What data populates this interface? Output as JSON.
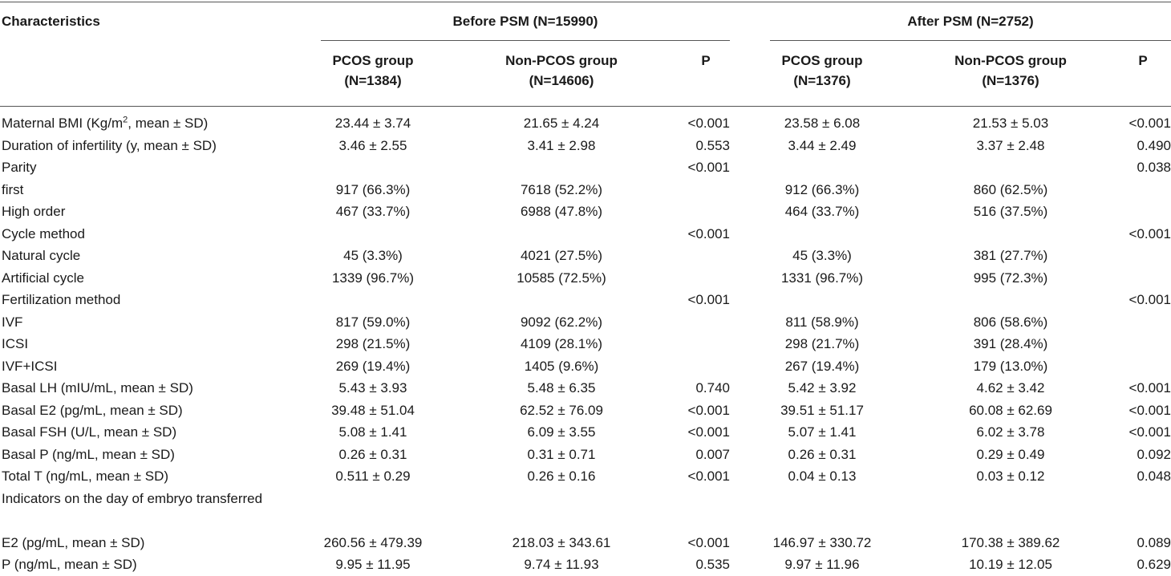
{
  "header": {
    "characteristics": "Characteristics",
    "before_group": "Before PSM (N=15990)",
    "after_group": "After PSM (N=2752)",
    "before_pcos_line1": "PCOS group",
    "before_pcos_line2": "(N=1384)",
    "before_non_line1": "Non-PCOS group",
    "before_non_line2": "(N=14606)",
    "before_p": "P",
    "after_pcos_line1": "PCOS group",
    "after_pcos_line2": "(N=1376)",
    "after_non_line1": "Non-PCOS group",
    "after_non_line2": "(N=1376)",
    "after_p": "P"
  },
  "bmi_label": {
    "before_sup": "Maternal BMI (Kg/m",
    "sup": "2",
    "after_sup": ", mean ± SD)"
  },
  "rows": [
    {
      "label": "",
      "b_pcos": "23.44 ± 3.74",
      "b_non": "21.65 ± 4.24",
      "b_p": "<0.001",
      "a_pcos": "23.58 ± 6.08",
      "a_non": "21.53 ± 5.03",
      "a_p": "<0.001"
    },
    {
      "label": "Duration of infertility (y, mean ± SD)",
      "b_pcos": "3.46 ± 2.55",
      "b_non": "3.41 ± 2.98",
      "b_p": "0.553",
      "a_pcos": "3.44 ± 2.49",
      "a_non": "3.37 ± 2.48",
      "a_p": "0.490"
    },
    {
      "label": "Parity",
      "b_pcos": "",
      "b_non": "",
      "b_p": "<0.001",
      "a_pcos": "",
      "a_non": "",
      "a_p": "0.038"
    },
    {
      "label": "first",
      "b_pcos": "917 (66.3%)",
      "b_non": "7618 (52.2%)",
      "b_p": "",
      "a_pcos": "912 (66.3%)",
      "a_non": "860 (62.5%)",
      "a_p": ""
    },
    {
      "label": "High order",
      "b_pcos": "467 (33.7%)",
      "b_non": "6988 (47.8%)",
      "b_p": "",
      "a_pcos": "464 (33.7%)",
      "a_non": "516 (37.5%)",
      "a_p": ""
    },
    {
      "label": "Cycle method",
      "b_pcos": "",
      "b_non": "",
      "b_p": "<0.001",
      "a_pcos": "",
      "a_non": "",
      "a_p": "<0.001"
    },
    {
      "label": "Natural cycle",
      "b_pcos": "45 (3.3%)",
      "b_non": "4021 (27.5%)",
      "b_p": "",
      "a_pcos": "45 (3.3%)",
      "a_non": "381 (27.7%)",
      "a_p": ""
    },
    {
      "label": "Artificial cycle",
      "b_pcos": "1339 (96.7%)",
      "b_non": "10585 (72.5%)",
      "b_p": "",
      "a_pcos": "1331 (96.7%)",
      "a_non": "995 (72.3%)",
      "a_p": ""
    },
    {
      "label": "Fertilization method",
      "b_pcos": "",
      "b_non": "",
      "b_p": "<0.001",
      "a_pcos": "",
      "a_non": "",
      "a_p": "<0.001"
    },
    {
      "label": "IVF",
      "b_pcos": "817 (59.0%)",
      "b_non": "9092 (62.2%)",
      "b_p": "",
      "a_pcos": "811 (58.9%)",
      "a_non": "806 (58.6%)",
      "a_p": ""
    },
    {
      "label": "ICSI",
      "b_pcos": "298 (21.5%)",
      "b_non": "4109 (28.1%)",
      "b_p": "",
      "a_pcos": "298 (21.7%)",
      "a_non": "391 (28.4%)",
      "a_p": ""
    },
    {
      "label": "IVF+ICSI",
      "b_pcos": "269 (19.4%)",
      "b_non": "1405 (9.6%)",
      "b_p": "",
      "a_pcos": "267 (19.4%)",
      "a_non": "179 (13.0%)",
      "a_p": ""
    },
    {
      "label": "Basal LH (mIU/mL, mean ± SD)",
      "b_pcos": "5.43 ± 3.93",
      "b_non": "5.48 ± 6.35",
      "b_p": "0.740",
      "a_pcos": "5.42 ± 3.92",
      "a_non": "4.62 ± 3.42",
      "a_p": "<0.001"
    },
    {
      "label": "Basal E2 (pg/mL, mean ± SD)",
      "b_pcos": "39.48 ± 51.04",
      "b_non": "62.52 ± 76.09",
      "b_p": "<0.001",
      "a_pcos": "39.51 ± 51.17",
      "a_non": "60.08 ± 62.69",
      "a_p": "<0.001"
    },
    {
      "label": "Basal FSH (U/L, mean ± SD)",
      "b_pcos": "5.08 ± 1.41",
      "b_non": "6.09 ± 3.55",
      "b_p": "<0.001",
      "a_pcos": "5.07 ± 1.41",
      "a_non": "6.02 ± 3.78",
      "a_p": "<0.001"
    },
    {
      "label": "Basal P (ng/mL, mean ± SD)",
      "b_pcos": "0.26 ± 0.31",
      "b_non": "0.31 ± 0.71",
      "b_p": "0.007",
      "a_pcos": "0.26 ± 0.31",
      "a_non": "0.29 ± 0.49",
      "a_p": "0.092"
    },
    {
      "label": "Total T (ng/mL, mean ± SD)",
      "b_pcos": "0.511 ± 0.29",
      "b_non": "0.26 ± 0.16",
      "b_p": "<0.001",
      "a_pcos": "0.04 ± 0.13",
      "a_non": "0.03 ± 0.12",
      "a_p": "0.048"
    },
    {
      "label": "Indicators on the day of embryo transferred",
      "b_pcos": "",
      "b_non": "",
      "b_p": "",
      "a_pcos": "",
      "a_non": "",
      "a_p": ""
    },
    {
      "label": "E2 (pg/mL, mean ± SD)",
      "b_pcos": "260.56 ± 479.39",
      "b_non": "218.03 ± 343.61",
      "b_p": "<0.001",
      "a_pcos": "146.97 ± 330.72",
      "a_non": "170.38 ± 389.62",
      "a_p": "0.089"
    },
    {
      "label": "P (ng/mL, mean ± SD)",
      "b_pcos": "9.95 ± 11.95",
      "b_non": "9.74 ± 11.93",
      "b_p": "0.535",
      "a_pcos": "9.97 ± 11.96",
      "a_non": "10.19 ± 12.05",
      "a_p": "0.629"
    }
  ]
}
